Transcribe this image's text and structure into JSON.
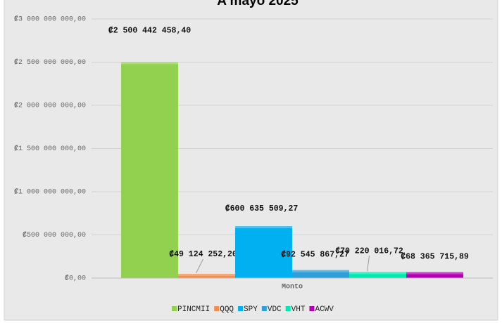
{
  "chart_data": {
    "type": "bar",
    "title": "A mayo 2025",
    "categories": [
      "Monto"
    ],
    "series": [
      {
        "name": "PINCMII",
        "color": "#92d050",
        "values": [
          2500442458.4
        ],
        "value_labels": [
          "₡2 500 442 458,40"
        ]
      },
      {
        "name": "QQQ",
        "color": "#f58b4c",
        "values": [
          49124252.2
        ],
        "value_labels": [
          "₡49 124 252,20"
        ]
      },
      {
        "name": "SPY",
        "color": "#00b0f0",
        "values": [
          600635509.27
        ],
        "value_labels": [
          "₡600 635 509,27"
        ]
      },
      {
        "name": "VDC",
        "color": "#2e9fd9",
        "values": [
          92545867.27
        ],
        "value_labels": [
          "₡92 545 867,27"
        ]
      },
      {
        "name": "VHT",
        "color": "#00e8b0",
        "values": [
          70220016.72
        ],
        "value_labels": [
          "₡70 220 016,72"
        ]
      },
      {
        "name": "ACWV",
        "color": "#b000b0",
        "values": [
          68365715.89
        ],
        "value_labels": [
          "₡68 365 715,89"
        ]
      }
    ],
    "ylim": [
      0,
      3000000000
    ],
    "yticks": [
      {
        "value": 0,
        "label": "₡0,00"
      },
      {
        "value": 500000000,
        "label": "₡500 000 000,00"
      },
      {
        "value": 1000000000,
        "label": "₡1 000 000 000,00"
      },
      {
        "value": 1500000000,
        "label": "₡1 500 000 000,00"
      },
      {
        "value": 2000000000,
        "label": "₡2 000 000 000,00"
      },
      {
        "value": 2500000000,
        "label": "₡2 500 000 000,00"
      },
      {
        "value": 3000000000,
        "label": "₡3 000 000 000,00"
      }
    ],
    "grid": true,
    "legend": "bottom"
  }
}
